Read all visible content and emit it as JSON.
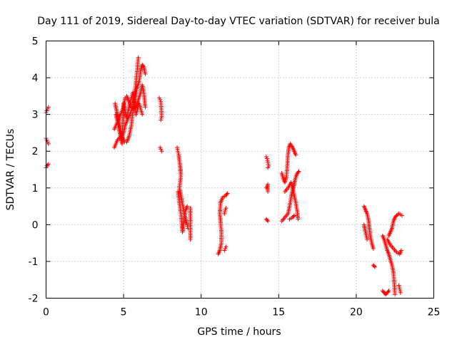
{
  "chart_data": {
    "type": "scatter",
    "title": "Day 111 of 2019, Sidereal Day-to-day VTEC variation (SDTVAR) for receiver bula",
    "xlabel": "GPS time / hours",
    "ylabel": "SDTVAR / TECUs",
    "xlim": [
      0,
      25
    ],
    "ylim": [
      -2,
      5
    ],
    "xticks": [
      0,
      5,
      10,
      15,
      20,
      25
    ],
    "yticks": [
      -2,
      -1,
      0,
      1,
      2,
      3,
      4,
      5
    ],
    "grid": true,
    "marker": "plus",
    "color": "#ff0000",
    "series": [
      {
        "segments": [
          [
            [
              0.0,
              3.05
            ],
            [
              0.05,
              3.1
            ],
            [
              0.1,
              3.15
            ],
            [
              0.15,
              3.2
            ]
          ],
          [
            [
              0.0,
              2.35
            ],
            [
              0.05,
              2.3
            ],
            [
              0.1,
              2.25
            ],
            [
              0.15,
              2.2
            ]
          ],
          [
            [
              0.0,
              1.55
            ],
            [
              0.05,
              1.6
            ],
            [
              0.1,
              1.62
            ],
            [
              0.15,
              1.65
            ]
          ],
          [
            [
              4.4,
              2.1
            ],
            [
              4.6,
              2.3
            ],
            [
              4.8,
              2.4
            ],
            [
              5.0,
              2.5
            ],
            [
              5.1,
              2.7
            ],
            [
              5.3,
              2.9
            ],
            [
              5.5,
              3.1
            ],
            [
              5.7,
              3.4
            ],
            [
              5.85,
              3.7
            ],
            [
              6.0,
              3.9
            ],
            [
              6.1,
              4.2
            ],
            [
              6.2,
              4.35
            ],
            [
              6.3,
              4.3
            ],
            [
              6.4,
              4.1
            ]
          ],
          [
            [
              4.45,
              3.3
            ],
            [
              4.55,
              3.1
            ],
            [
              4.65,
              2.9
            ],
            [
              4.75,
              2.7
            ],
            [
              4.85,
              2.5
            ],
            [
              4.95,
              2.35
            ],
            [
              5.05,
              2.25
            ],
            [
              5.2,
              2.25
            ],
            [
              5.35,
              2.4
            ],
            [
              5.5,
              2.7
            ],
            [
              5.6,
              3.1
            ],
            [
              5.7,
              3.5
            ],
            [
              5.8,
              3.9
            ],
            [
              5.9,
              4.3
            ],
            [
              5.95,
              4.55
            ]
          ],
          [
            [
              5.2,
              3.5
            ],
            [
              5.35,
              3.35
            ],
            [
              5.5,
              3.2
            ],
            [
              5.65,
              3.15
            ],
            [
              5.8,
              3.2
            ],
            [
              5.95,
              3.4
            ],
            [
              6.1,
              3.6
            ],
            [
              6.2,
              3.8
            ],
            [
              6.3,
              3.6
            ],
            [
              6.35,
              3.4
            ],
            [
              6.4,
              3.2
            ]
          ],
          [
            [
              4.4,
              2.6
            ],
            [
              4.6,
              2.8
            ],
            [
              4.8,
              3.0
            ],
            [
              5.0,
              3.2
            ],
            [
              5.1,
              3.45
            ]
          ],
          [
            [
              4.5,
              3.0
            ],
            [
              4.7,
              2.6
            ],
            [
              4.9,
              2.2
            ],
            [
              5.0,
              3.3
            ],
            [
              5.2,
              2.9
            ],
            [
              5.4,
              3.3
            ],
            [
              5.6,
              3.6
            ],
            [
              5.8,
              3.0
            ],
            [
              6.0,
              3.3
            ],
            [
              6.2,
              3.0
            ]
          ],
          [
            [
              7.3,
              3.45
            ],
            [
              7.35,
              3.4
            ],
            [
              7.4,
              3.35
            ],
            [
              7.45,
              2.95
            ],
            [
              7.4,
              2.85
            ]
          ],
          [
            [
              7.35,
              2.1
            ],
            [
              7.4,
              2.05
            ],
            [
              7.45,
              2.0
            ]
          ],
          [
            [
              8.45,
              2.1
            ],
            [
              8.5,
              2.0
            ],
            [
              8.55,
              1.9
            ],
            [
              8.6,
              1.75
            ],
            [
              8.65,
              1.55
            ],
            [
              8.7,
              1.35
            ],
            [
              8.6,
              1.0
            ],
            [
              8.7,
              0.8
            ],
            [
              8.8,
              0.55
            ],
            [
              8.9,
              0.35
            ],
            [
              9.0,
              0.15
            ],
            [
              9.1,
              0.0
            ],
            [
              9.15,
              -0.1
            ]
          ],
          [
            [
              8.5,
              0.9
            ],
            [
              8.6,
              0.6
            ],
            [
              8.7,
              0.3
            ],
            [
              8.75,
              0.0
            ],
            [
              8.8,
              -0.2
            ],
            [
              8.9,
              0.1
            ],
            [
              9.0,
              0.4
            ],
            [
              9.1,
              0.5
            ]
          ],
          [
            [
              9.3,
              0.45
            ],
            [
              9.3,
              0.2
            ],
            [
              9.3,
              -0.4
            ]
          ],
          [
            [
              11.1,
              -0.8
            ],
            [
              11.2,
              -0.7
            ],
            [
              11.3,
              -0.5
            ],
            [
              11.3,
              -0.2
            ],
            [
              11.25,
              0.1
            ],
            [
              11.2,
              0.3
            ],
            [
              11.25,
              0.6
            ],
            [
              11.4,
              0.75
            ],
            [
              11.6,
              0.8
            ],
            [
              11.7,
              0.85
            ]
          ],
          [
            [
              11.5,
              0.3
            ],
            [
              11.55,
              0.4
            ],
            [
              11.6,
              0.45
            ]
          ],
          [
            [
              11.5,
              -0.7
            ],
            [
              11.55,
              -0.65
            ],
            [
              11.6,
              -0.6
            ]
          ],
          [
            [
              14.2,
              1.85
            ],
            [
              14.25,
              1.8
            ],
            [
              14.3,
              1.7
            ],
            [
              14.35,
              1.6
            ],
            [
              14.3,
              1.55
            ]
          ],
          [
            [
              14.2,
              1.0
            ],
            [
              14.25,
              1.05
            ],
            [
              14.3,
              1.1
            ],
            [
              14.3,
              0.9
            ]
          ],
          [
            [
              14.2,
              0.15
            ],
            [
              14.3,
              0.1
            ]
          ],
          [
            [
              15.2,
              1.4
            ],
            [
              15.3,
              1.25
            ],
            [
              15.4,
              1.15
            ],
            [
              15.5,
              1.3
            ],
            [
              15.55,
              1.6
            ],
            [
              15.6,
              1.9
            ],
            [
              15.65,
              2.1
            ],
            [
              15.75,
              2.2
            ],
            [
              15.9,
              2.1
            ],
            [
              16.0,
              2.0
            ],
            [
              16.1,
              1.9
            ]
          ],
          [
            [
              15.2,
              0.1
            ],
            [
              15.4,
              0.2
            ],
            [
              15.6,
              0.3
            ],
            [
              15.7,
              0.5
            ],
            [
              15.8,
              0.75
            ],
            [
              15.9,
              0.95
            ],
            [
              16.0,
              1.1
            ],
            [
              16.1,
              1.3
            ],
            [
              16.2,
              1.4
            ],
            [
              16.3,
              1.45
            ]
          ],
          [
            [
              15.4,
              0.9
            ],
            [
              15.6,
              1.0
            ],
            [
              15.8,
              1.15
            ],
            [
              15.9,
              1.0
            ],
            [
              16.0,
              0.8
            ],
            [
              16.1,
              0.6
            ],
            [
              16.2,
              0.35
            ],
            [
              16.25,
              0.15
            ]
          ],
          [
            [
              15.7,
              0.15
            ],
            [
              15.9,
              0.2
            ],
            [
              16.0,
              0.25
            ]
          ],
          [
            [
              20.5,
              0.5
            ],
            [
              20.6,
              0.4
            ],
            [
              20.7,
              0.3
            ],
            [
              20.8,
              0.1
            ],
            [
              20.85,
              -0.1
            ],
            [
              20.9,
              -0.3
            ],
            [
              21.0,
              -0.5
            ],
            [
              21.1,
              -0.65
            ]
          ],
          [
            [
              20.5,
              0.0
            ],
            [
              20.6,
              -0.2
            ],
            [
              20.7,
              -0.4
            ]
          ],
          [
            [
              21.1,
              -1.1
            ],
            [
              21.2,
              -1.15
            ]
          ],
          [
            [
              21.7,
              -1.8
            ],
            [
              21.8,
              -1.85
            ],
            [
              21.9,
              -1.9
            ],
            [
              22.0,
              -1.85
            ],
            [
              22.1,
              -1.8
            ]
          ],
          [
            [
              21.7,
              -0.3
            ],
            [
              21.8,
              -0.4
            ],
            [
              21.9,
              -0.55
            ],
            [
              22.0,
              -0.7
            ],
            [
              22.1,
              -0.8
            ],
            [
              22.2,
              -0.95
            ],
            [
              22.3,
              -1.1
            ],
            [
              22.4,
              -1.3
            ],
            [
              22.45,
              -1.6
            ],
            [
              22.5,
              -1.9
            ]
          ],
          [
            [
              22.1,
              -0.3
            ],
            [
              22.2,
              -0.2
            ],
            [
              22.3,
              -0.1
            ],
            [
              22.4,
              0.1
            ],
            [
              22.5,
              0.2
            ],
            [
              22.6,
              0.25
            ],
            [
              22.75,
              0.3
            ],
            [
              22.85,
              0.28
            ],
            [
              22.95,
              0.25
            ]
          ],
          [
            [
              22.0,
              -0.4
            ],
            [
              22.2,
              -0.55
            ],
            [
              22.4,
              -0.65
            ],
            [
              22.6,
              -0.75
            ],
            [
              22.8,
              -0.8
            ],
            [
              22.9,
              -0.7
            ]
          ],
          [
            [
              22.75,
              -1.65
            ],
            [
              22.8,
              -1.75
            ],
            [
              22.85,
              -1.85
            ]
          ]
        ]
      }
    ]
  }
}
